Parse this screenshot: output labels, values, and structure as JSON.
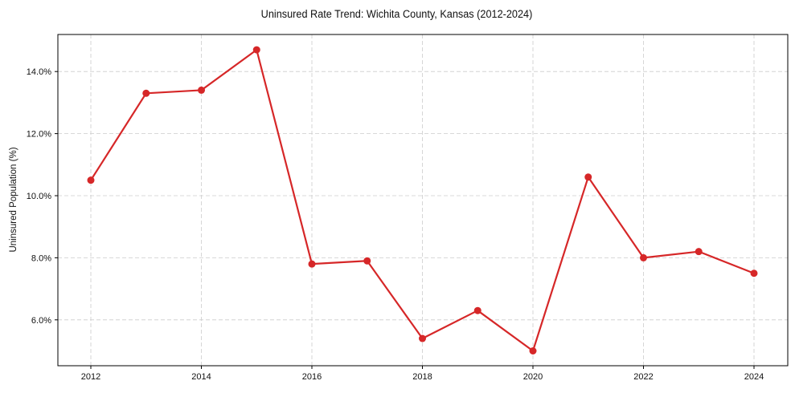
{
  "chart_data": {
    "type": "line",
    "title": "Uninsured Rate Trend: Wichita County, Kansas (2012-2024)",
    "xlabel": "",
    "ylabel": "Uninsured Population (%)",
    "x": [
      2012,
      2013,
      2014,
      2015,
      2016,
      2017,
      2018,
      2019,
      2020,
      2021,
      2022,
      2023,
      2024
    ],
    "series": [
      {
        "name": "Uninsured Rate",
        "color": "#d62728",
        "values": [
          10.5,
          13.3,
          13.4,
          14.7,
          7.8,
          7.9,
          5.4,
          6.3,
          5.0,
          10.6,
          8.0,
          8.2,
          7.5
        ]
      }
    ],
    "xticks": [
      "2012",
      "2014",
      "2016",
      "2018",
      "2020",
      "2022",
      "2024"
    ],
    "yticks": [
      "6.0%",
      "8.0%",
      "10.0%",
      "12.0%",
      "14.0%"
    ],
    "ylim": [
      4.5,
      15.15
    ],
    "xlim": [
      2011.4,
      2024.6
    ],
    "grid": true,
    "legend": "none"
  }
}
